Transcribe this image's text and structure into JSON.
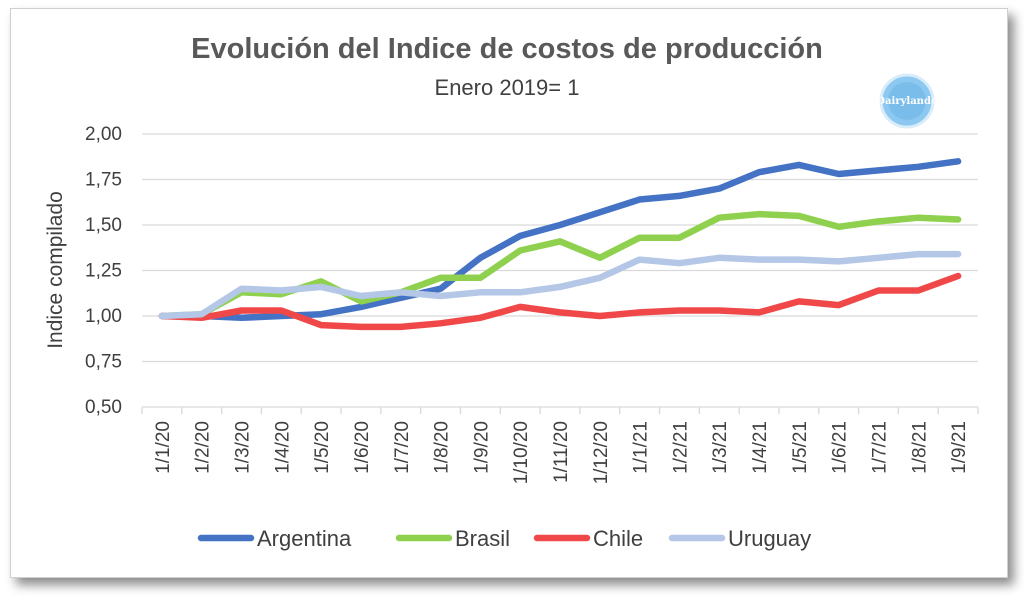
{
  "colors": {
    "Argentina": "#4472c4",
    "Brasil": "#8fd14f",
    "Chile": "#f04848",
    "Uruguay": "#b4c7e7",
    "grid": "#d9d9d9",
    "text": "#404040"
  },
  "logo": {
    "text": "Dairylando",
    "icon": "dairylando-logo"
  },
  "chart_data": {
    "type": "line",
    "title": "Evolución del Indice de costos de producción",
    "subtitle": "Enero 2019= 1",
    "ylabel": "Indice compilado",
    "xlabel": "",
    "ylim": [
      0.5,
      2.0
    ],
    "y_ticks": [
      "0,50",
      "0,75",
      "1,00",
      "1,25",
      "1,50",
      "1,75",
      "2,00"
    ],
    "grid": true,
    "legend_position": "bottom",
    "categories": [
      "1/1/20",
      "1/2/20",
      "1/3/20",
      "1/4/20",
      "1/5/20",
      "1/6/20",
      "1/7/20",
      "1/8/20",
      "1/9/20",
      "1/10/20",
      "1/11/20",
      "1/12/20",
      "1/1/21",
      "1/2/21",
      "1/3/21",
      "1/4/21",
      "1/5/21",
      "1/6/21",
      "1/7/21",
      "1/8/21",
      "1/9/21"
    ],
    "series": [
      {
        "name": "Argentina",
        "values": [
          1.0,
          1.0,
          0.99,
          1.0,
          1.01,
          1.05,
          1.1,
          1.15,
          1.32,
          1.44,
          1.5,
          1.57,
          1.64,
          1.66,
          1.7,
          1.79,
          1.83,
          1.78,
          1.8,
          1.82,
          1.85
        ]
      },
      {
        "name": "Brasil",
        "values": [
          1.0,
          1.01,
          1.13,
          1.12,
          1.19,
          1.08,
          1.13,
          1.21,
          1.21,
          1.36,
          1.41,
          1.32,
          1.43,
          1.43,
          1.54,
          1.56,
          1.55,
          1.49,
          1.52,
          1.54,
          1.53
        ]
      },
      {
        "name": "Chile",
        "values": [
          1.0,
          0.99,
          1.03,
          1.03,
          0.95,
          0.94,
          0.94,
          0.96,
          0.99,
          1.05,
          1.02,
          1.0,
          1.02,
          1.03,
          1.03,
          1.02,
          1.08,
          1.06,
          1.14,
          1.14,
          1.22
        ]
      },
      {
        "name": "Uruguay",
        "values": [
          1.0,
          1.01,
          1.15,
          1.14,
          1.16,
          1.11,
          1.13,
          1.11,
          1.13,
          1.13,
          1.16,
          1.21,
          1.31,
          1.29,
          1.32,
          1.31,
          1.31,
          1.3,
          1.32,
          1.34,
          1.34
        ]
      }
    ]
  }
}
